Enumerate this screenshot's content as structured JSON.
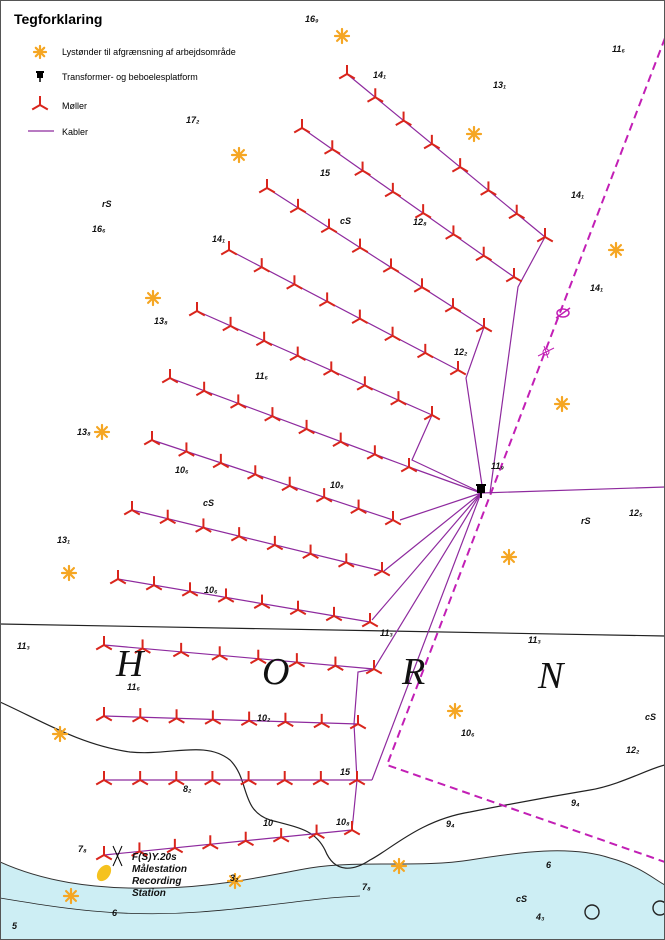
{
  "legend": {
    "title": "Tegforklaring",
    "items": [
      {
        "icon": "light-buoy-icon",
        "label": "Lystønder til afgrænsning af arbejdsområde"
      },
      {
        "icon": "platform-icon",
        "label": "Transformer- og beboelesplatform"
      },
      {
        "icon": "turbine-icon",
        "label": "Møller"
      },
      {
        "icon": "cable-line-icon",
        "label": "Kabler"
      }
    ]
  },
  "place_name": [
    "H",
    "O",
    "R",
    "N"
  ],
  "station": {
    "code": "F(S)Y.20s",
    "lines": [
      "Målestation",
      "Recording",
      "Station"
    ]
  },
  "depth_labels": [
    "16₉",
    "11₆",
    "14₁",
    "13₁",
    "17₂",
    "15",
    "12₈",
    "14₁",
    "14₁",
    "rS",
    "16₆",
    "cS",
    "14₁",
    "13₈",
    "12₂",
    "11₆",
    "13₈",
    "11₉",
    "10₆",
    "10₈",
    "cS",
    "rS",
    "12₅",
    "13₁",
    "10₆",
    "11₃",
    "11₃",
    "11₃",
    "11₆",
    "10₆",
    "10₂",
    "cS",
    "12₂",
    "15",
    "9₄",
    "9₄",
    "8₂",
    "10₈",
    "7₈",
    "7₈",
    "4₃",
    "cS",
    "5",
    "3₂"
  ],
  "contours": [
    "10",
    "6",
    "6"
  ],
  "colors": {
    "turbine": "#d9251c",
    "cable": "#8e2a9e",
    "buoy": "#f5a623",
    "boundary": "#c21fb5",
    "water_shallow": "#cdeef4",
    "platform": "#000000"
  }
}
